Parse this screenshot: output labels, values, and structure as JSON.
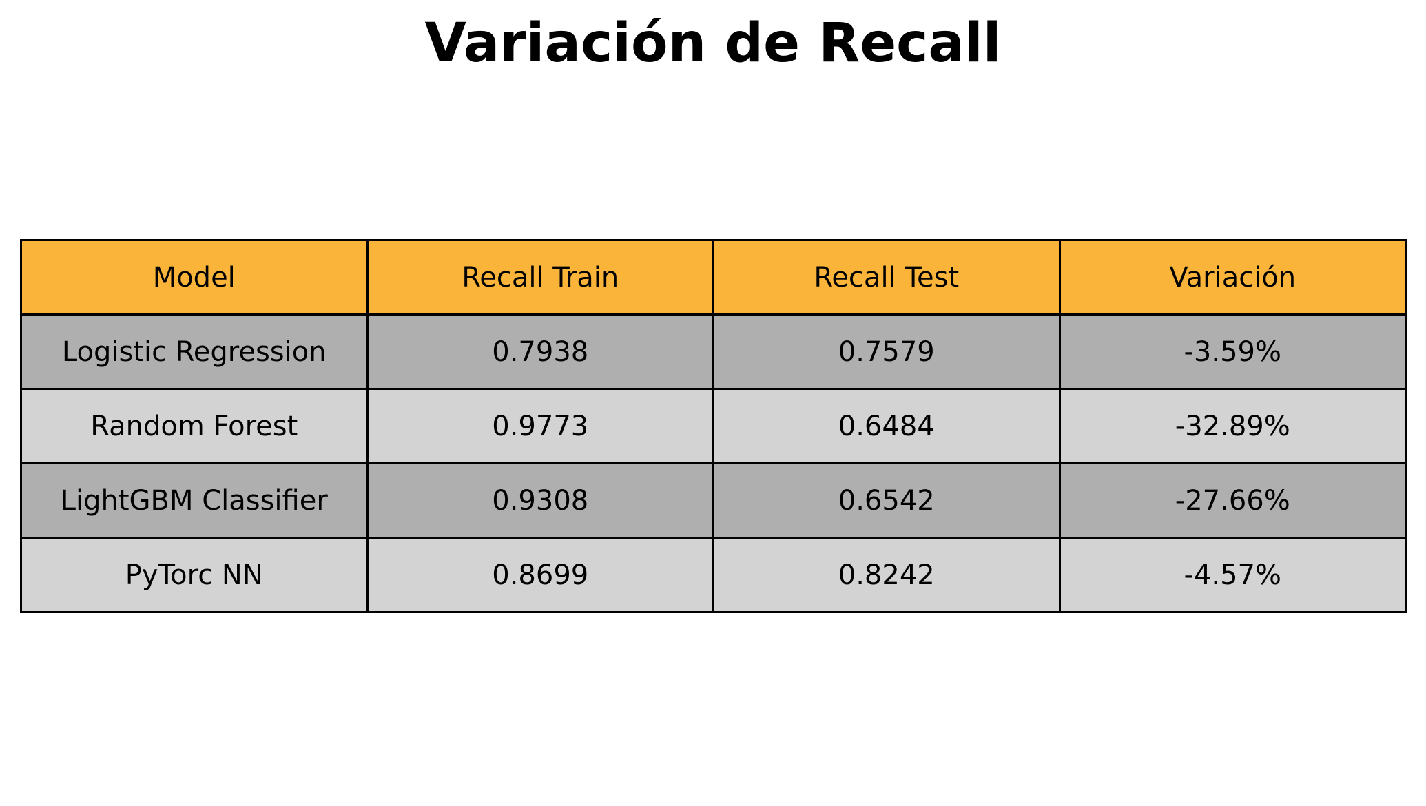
{
  "chart_data": {
    "type": "table",
    "title": "Variación de Recall",
    "columns": [
      "Model",
      "Recall Train",
      "Recall Test",
      "Variación"
    ],
    "rows": [
      [
        "Logistic Regression",
        "0.7938",
        "0.7579",
        "-3.59%"
      ],
      [
        "Random Forest",
        "0.9773",
        "0.6484",
        "-32.89%"
      ],
      [
        "LightGBM Classifier",
        "0.9308",
        "0.6542",
        "-27.66%"
      ],
      [
        "PyTorc NN",
        "0.8699",
        "0.8242",
        "-4.57%"
      ]
    ],
    "colors": {
      "header": "#fab43a",
      "row_odd": "#b0afaf",
      "row_even": "#d4d3d4",
      "border": "#000000"
    }
  }
}
